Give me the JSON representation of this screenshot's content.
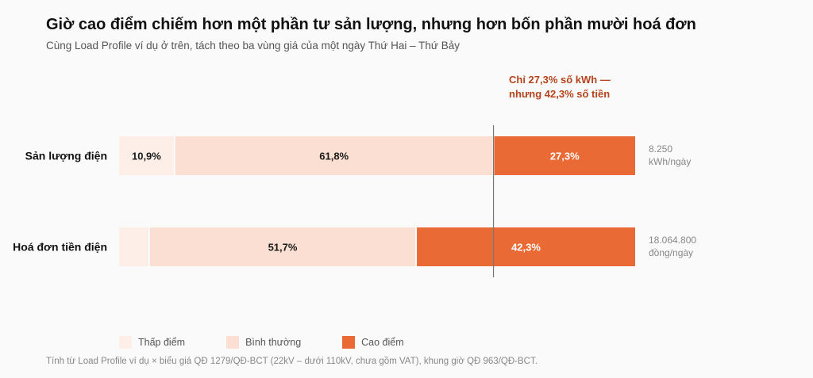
{
  "title": "Giờ cao điểm chiếm hơn một phần tư sản lượng, nhưng hơn bốn phần mười hoá đơn",
  "subtitle": "Cùng Load Profile ví dụ ở trên, tách theo ba vùng giá của một ngày Thứ Hai – Thứ Bảy",
  "annotation": {
    "line1": "Chỉ 27,3% số kWh —",
    "line2": "nhưng 42,3% số tiền"
  },
  "footnote": "Tính từ Load Profile ví dụ × biểu giá QĐ 1279/QĐ-BCT (22kV – dưới 110kV, chưa gồm VAT), khung giờ QĐ 963/QĐ-BCT.",
  "colors": {
    "off_peak": "#fdefe8",
    "normal": "#fadfd2",
    "peak": "#ea6a35",
    "annotation": "#b5431c"
  },
  "legend": [
    {
      "key": "off_peak",
      "label": "Thấp điểm"
    },
    {
      "key": "normal",
      "label": "Bình thường"
    },
    {
      "key": "peak",
      "label": "Cao điểm"
    }
  ],
  "chart_data": {
    "type": "bar",
    "orientation": "horizontal-stacked-100",
    "categories": [
      "Sản lượng điện",
      "Hoá đơn tiền điện"
    ],
    "series": [
      {
        "name": "Thấp điểm",
        "key": "off_peak",
        "values": [
          10.9,
          6.0
        ],
        "labels": [
          "10,9%",
          ""
        ]
      },
      {
        "name": "Bình thường",
        "key": "normal",
        "values": [
          61.8,
          51.7
        ],
        "labels": [
          "61,8%",
          "51,7%"
        ]
      },
      {
        "name": "Cao điểm",
        "key": "peak",
        "values": [
          27.3,
          42.3
        ],
        "labels": [
          "27,3%",
          "42,3%"
        ]
      }
    ],
    "totals": [
      {
        "value": "8.250",
        "unit": "kWh/ngày"
      },
      {
        "value": "18.064.800",
        "unit": "đồng/ngày"
      }
    ],
    "reference_line": 72.7,
    "xlim": [
      0,
      100
    ],
    "grid": false,
    "legend_position": "bottom"
  }
}
